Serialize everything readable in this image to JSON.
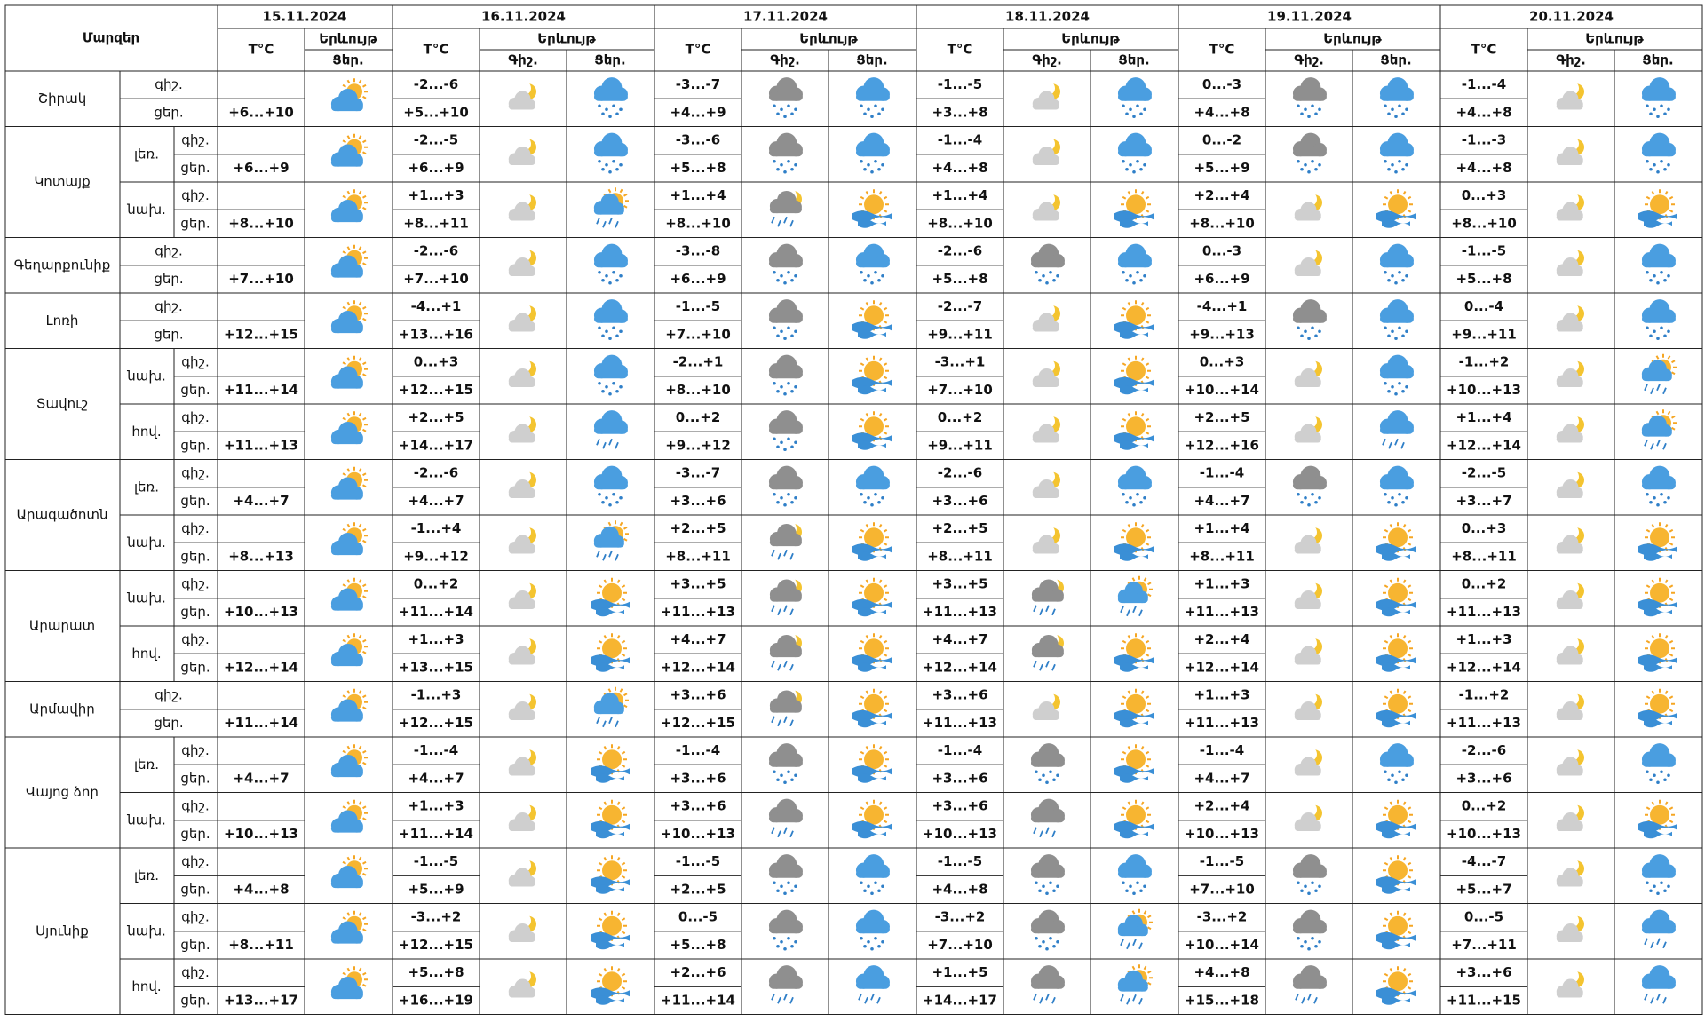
{
  "header": {
    "region_label": "Մարզեր",
    "temp_label": "T°C",
    "phenomenon_label": "Երևույթ",
    "night_label": "Գիշ.",
    "day_label": "Ցեր.",
    "row_labels": [
      "գիշ.",
      "ցեր."
    ],
    "dates": [
      "15.11.2024",
      "16.11.2024",
      "17.11.2024",
      "18.11.2024",
      "19.11.2024",
      "20.11.2024"
    ]
  },
  "regions": [
    {
      "name": "Շիրակ",
      "zones": [
        {
          "day1": "+6...+10",
          "forecast": [
            [
              "-2...-6",
              "+5...+10"
            ],
            [
              "-3...-7",
              "+4...+9"
            ],
            [
              "-1...-5",
              "+3...+8"
            ],
            [
              "0...-3",
              "+4...+8"
            ],
            [
              "-1...-4",
              "+4...+8"
            ]
          ]
        }
      ]
    },
    {
      "name": "Կոտայք",
      "zones": [
        {
          "name": "լեռ.",
          "day1": "+6...+9",
          "forecast": [
            [
              "-2...-5",
              "+6...+9"
            ],
            [
              "-3...-6",
              "+5...+8"
            ],
            [
              "-1...-4",
              "+4...+8"
            ],
            [
              "0...-2",
              "+5...+9"
            ],
            [
              "-1...-3",
              "+4...+8"
            ]
          ]
        },
        {
          "name": "նախ.",
          "day1": "+8...+10",
          "forecast": [
            [
              "+1...+3",
              "+8...+11"
            ],
            [
              "+1...+4",
              "+8...+10"
            ],
            [
              "+1...+4",
              "+8...+10"
            ],
            [
              "+2...+4",
              "+8...+10"
            ],
            [
              "0...+3",
              "+8...+10"
            ]
          ]
        }
      ]
    },
    {
      "name": "Գեղարքունիք",
      "zones": [
        {
          "day1": "+7...+10",
          "forecast": [
            [
              "-2...-6",
              "+7...+10"
            ],
            [
              "-3...-8",
              "+6...+9"
            ],
            [
              "-2...-6",
              "+5...+8"
            ],
            [
              "0...-3",
              "+6...+9"
            ],
            [
              "-1...-5",
              "+5...+8"
            ]
          ]
        }
      ]
    },
    {
      "name": "Լոռի",
      "zones": [
        {
          "day1": "+12...+15",
          "forecast": [
            [
              "-4...+1",
              "+13...+16"
            ],
            [
              "-1...-5",
              "+7...+10"
            ],
            [
              "-2...-7",
              "+9...+11"
            ],
            [
              "-4...+1",
              "+9...+13"
            ],
            [
              "0...-4",
              "+9...+11"
            ]
          ]
        }
      ]
    },
    {
      "name": "Տավուշ",
      "zones": [
        {
          "name": "նախ.",
          "day1": "+11...+14",
          "forecast": [
            [
              "0...+3",
              "+12...+15"
            ],
            [
              "-2...+1",
              "+8...+10"
            ],
            [
              "-3...+1",
              "+7...+10"
            ],
            [
              "0...+3",
              "+10...+14"
            ],
            [
              "-1...+2",
              "+10...+13"
            ]
          ]
        },
        {
          "name": "հով.",
          "day1": "+11...+13",
          "forecast": [
            [
              "+2...+5",
              "+14...+17"
            ],
            [
              "0...+2",
              "+9...+12"
            ],
            [
              "0...+2",
              "+9...+11"
            ],
            [
              "+2...+5",
              "+12...+16"
            ],
            [
              "+1...+4",
              "+12...+14"
            ]
          ]
        }
      ]
    },
    {
      "name": "Արագածոտն",
      "zones": [
        {
          "name": "լեռ.",
          "day1": "+4...+7",
          "forecast": [
            [
              "-2...-6",
              "+4...+7"
            ],
            [
              "-3...-7",
              "+3...+6"
            ],
            [
              "-2...-6",
              "+3...+6"
            ],
            [
              "-1...-4",
              "+4...+7"
            ],
            [
              "-2...-5",
              "+3...+7"
            ]
          ]
        },
        {
          "name": "նախ.",
          "day1": "+8...+13",
          "forecast": [
            [
              "-1...+4",
              "+9...+12"
            ],
            [
              "+2...+5",
              "+8...+11"
            ],
            [
              "+2...+5",
              "+8...+11"
            ],
            [
              "+1...+4",
              "+8...+11"
            ],
            [
              "0...+3",
              "+8...+11"
            ]
          ]
        }
      ]
    },
    {
      "name": "Արարատ",
      "zones": [
        {
          "name": "նախ.",
          "day1": "+10...+13",
          "forecast": [
            [
              "0...+2",
              "+11...+14"
            ],
            [
              "+3...+5",
              "+11...+13"
            ],
            [
              "+3...+5",
              "+11...+13"
            ],
            [
              "+1...+3",
              "+11...+13"
            ],
            [
              "0...+2",
              "+11...+13"
            ]
          ]
        },
        {
          "name": "հով.",
          "day1": "+12...+14",
          "forecast": [
            [
              "+1...+3",
              "+13...+15"
            ],
            [
              "+4...+7",
              "+12...+14"
            ],
            [
              "+4...+7",
              "+12...+14"
            ],
            [
              "+2...+4",
              "+12...+14"
            ],
            [
              "+1...+3",
              "+12...+14"
            ]
          ]
        }
      ]
    },
    {
      "name": "Արմավիր",
      "zones": [
        {
          "day1": "+11...+14",
          "forecast": [
            [
              "-1...+3",
              "+12...+15"
            ],
            [
              "+3...+6",
              "+12...+15"
            ],
            [
              "+3...+6",
              "+11...+13"
            ],
            [
              "+1...+3",
              "+11...+13"
            ],
            [
              "-1...+2",
              "+11...+13"
            ]
          ]
        }
      ]
    },
    {
      "name": "Վայոց ձոր",
      "zones": [
        {
          "name": "լեռ.",
          "day1": "+4...+7",
          "forecast": [
            [
              "-1...-4",
              "+4...+7"
            ],
            [
              "-1...-4",
              "+3...+6"
            ],
            [
              "-1...-4",
              "+3...+6"
            ],
            [
              "-1...-4",
              "+4...+7"
            ],
            [
              "-2...-6",
              "+3...+6"
            ]
          ]
        },
        {
          "name": "նախ.",
          "day1": "+10...+13",
          "forecast": [
            [
              "+1...+3",
              "+11...+14"
            ],
            [
              "+3...+6",
              "+10...+13"
            ],
            [
              "+3...+6",
              "+10...+13"
            ],
            [
              "+2...+4",
              "+10...+13"
            ],
            [
              "0...+2",
              "+10...+13"
            ]
          ]
        }
      ]
    },
    {
      "name": "Սյունիք",
      "zones": [
        {
          "name": "լեռ.",
          "day1": "+4...+8",
          "forecast": [
            [
              "-1...-5",
              "+5...+9"
            ],
            [
              "-1...-5",
              "+2...+5"
            ],
            [
              "-1...-5",
              "+4...+8"
            ],
            [
              "-1...-5",
              "+7...+10"
            ],
            [
              "-4...-7",
              "+5...+7"
            ]
          ]
        },
        {
          "name": "նախ.",
          "day1": "+8...+11",
          "forecast": [
            [
              "-3...+2",
              "+12...+15"
            ],
            [
              "0...-5",
              "+5...+8"
            ],
            [
              "-3...+2",
              "+7...+10"
            ],
            [
              "-3...+2",
              "+10...+14"
            ],
            [
              "0...-5",
              "+7...+11"
            ]
          ]
        },
        {
          "name": "հով.",
          "day1": "+13...+17",
          "forecast": [
            [
              "+5...+8",
              "+16...+19"
            ],
            [
              "+2...+6",
              "+11...+14"
            ],
            [
              "+1...+5",
              "+14...+17"
            ],
            [
              "+4...+8",
              "+15...+18"
            ],
            [
              "+3...+6",
              "+11...+15"
            ]
          ]
        }
      ]
    }
  ]
}
